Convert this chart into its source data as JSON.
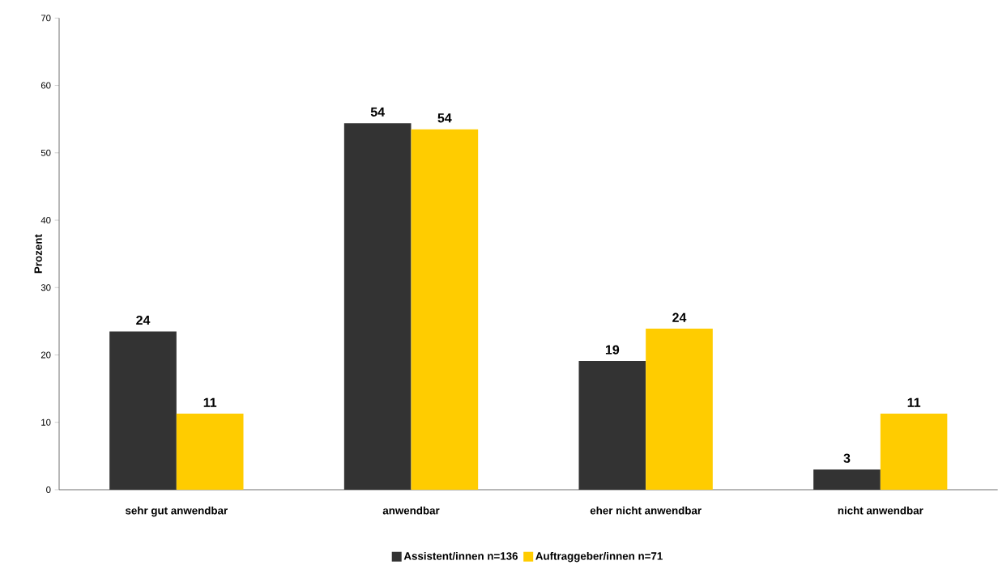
{
  "chart_data": {
    "type": "bar",
    "ylabel": "Prozent",
    "categories": [
      "sehr gut anwendbar",
      "anwendbar",
      "eher nicht anwendbar",
      "nicht anwendbar"
    ],
    "series": [
      {
        "name": "Assistent/innen n=136",
        "color": "#333333",
        "values": [
          23.5,
          54.4,
          19.1,
          3.0
        ],
        "value_labels": [
          "24",
          "54",
          "19",
          "3"
        ]
      },
      {
        "name": "Auftraggeber/innen n=71",
        "color": "#ffcc00",
        "values": [
          11.3,
          53.5,
          23.9,
          11.3
        ],
        "value_labels": [
          "11",
          "54",
          "24",
          "11"
        ]
      }
    ],
    "ylim": [
      0,
      70
    ],
    "yticks": [
      0,
      10,
      20,
      30,
      40,
      50,
      60,
      70
    ],
    "legend": "bottom"
  }
}
